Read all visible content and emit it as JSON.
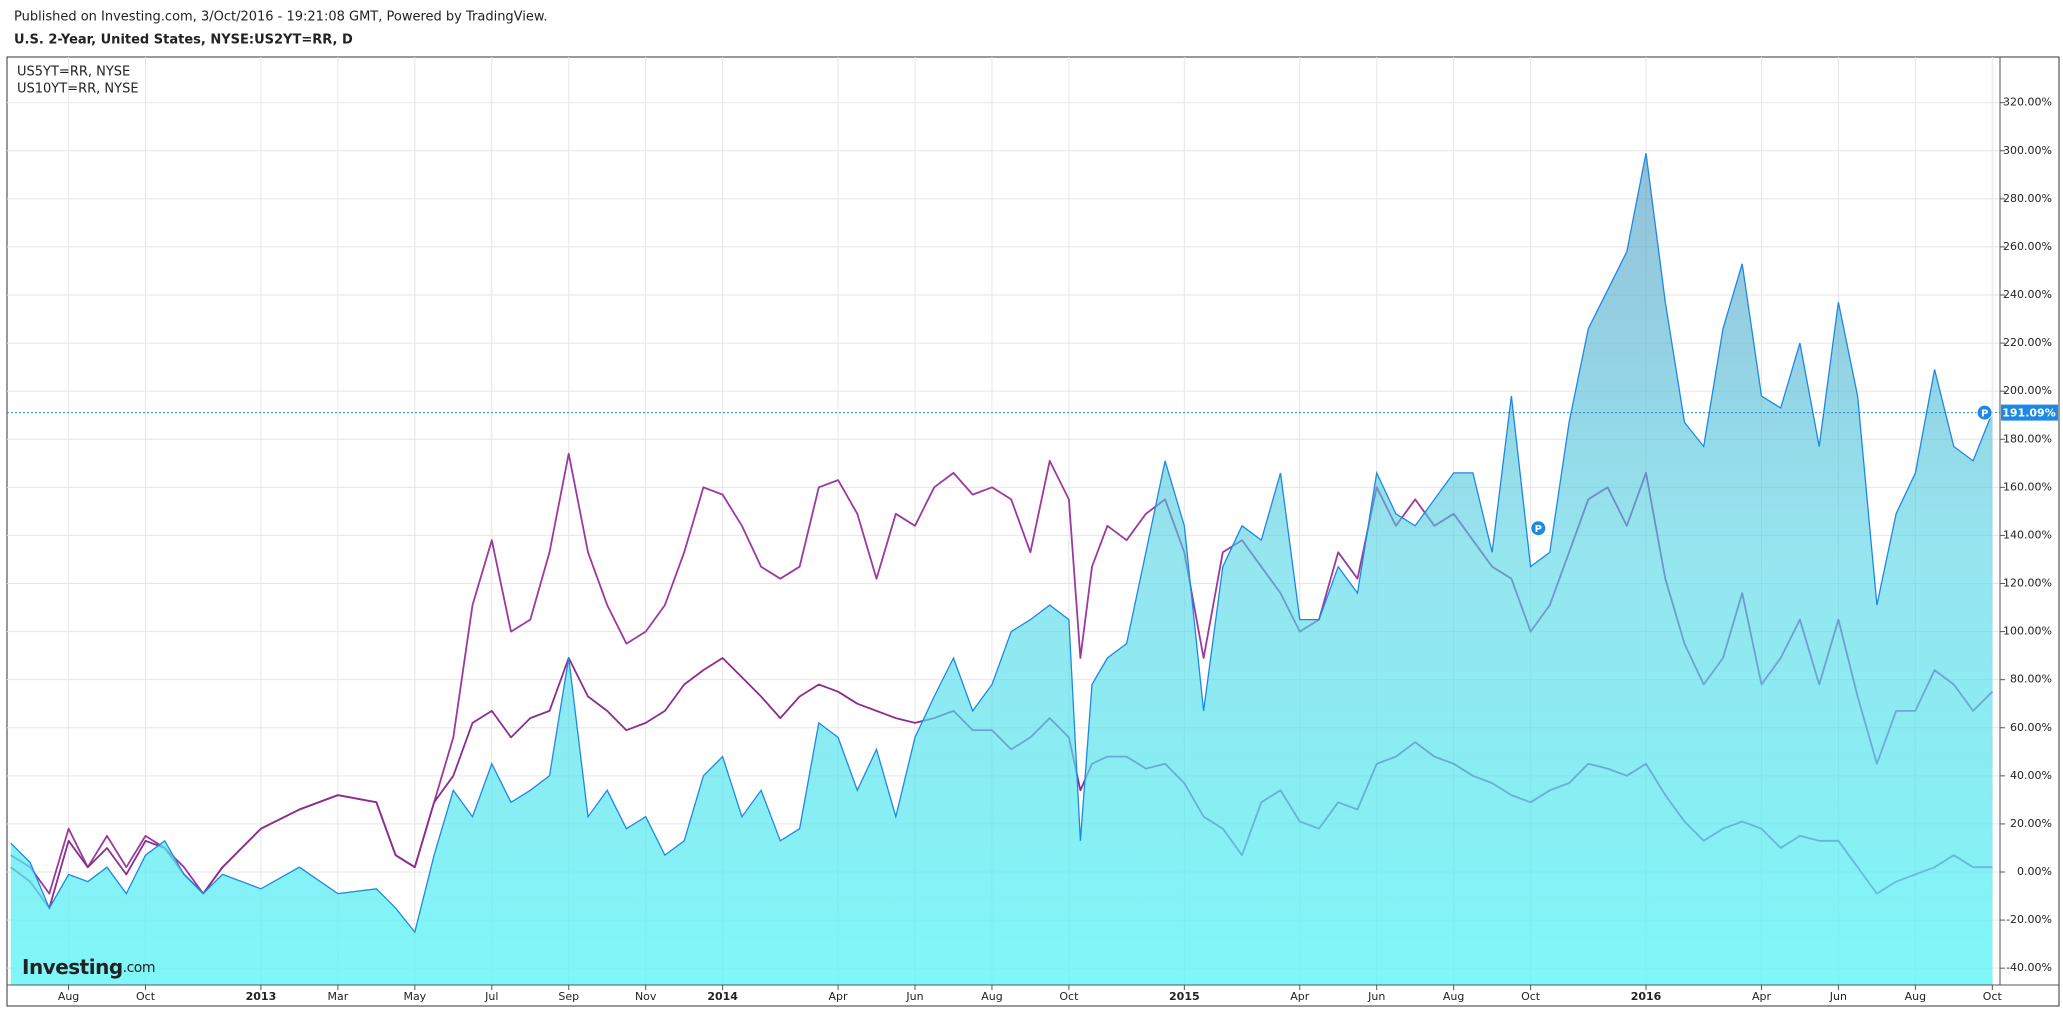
{
  "header": {
    "published": "Published on Investing.com, 3/Oct/2016 - 19:21:08 GMT, Powered by TradingView.",
    "title": "U.S. 2-Year, United States, NYSE:US2YT=RR, D"
  },
  "logo": {
    "brand": "Investing",
    "suffix": ".com"
  },
  "chart_data": {
    "type": "area",
    "x": [
      -1.5,
      -1,
      -0.5,
      0,
      0.5,
      1,
      1.5,
      2,
      2.5,
      3,
      3.5,
      4,
      5,
      6,
      7,
      8,
      8.5,
      9,
      9.5,
      10,
      10.5,
      11,
      11.5,
      12,
      12.5,
      13,
      13.5,
      14,
      14.5,
      15,
      15.5,
      16,
      16.5,
      17,
      17.5,
      18,
      18.5,
      19,
      19.5,
      20,
      20.5,
      21,
      21.5,
      22,
      22.5,
      23,
      23.5,
      24,
      24.5,
      25,
      25.5,
      26,
      26.3,
      26.6,
      27,
      27.5,
      28,
      28.5,
      29,
      29.5,
      30,
      30.5,
      31,
      31.5,
      32,
      32.5,
      33,
      33.5,
      34,
      34.5,
      35,
      35.5,
      36,
      36.5,
      37,
      37.5,
      38,
      38.5,
      39,
      39.5,
      40,
      40.5,
      41,
      41.5,
      42,
      42.5,
      43,
      43.5,
      44,
      44.5,
      45,
      45.5,
      46,
      46.5,
      47,
      47.5,
      48,
      48.5,
      49,
      49.5,
      50
    ],
    "series": [
      {
        "type": "area",
        "color": "#1e88e5",
        "values": [
          12,
          4,
          -15,
          -1,
          -4,
          2,
          -9,
          7,
          13,
          -1,
          -9,
          -1,
          -7,
          2,
          -9,
          -7,
          -15,
          -25,
          7,
          34,
          23,
          45,
          29,
          34,
          40,
          89,
          23,
          34,
          18,
          23,
          7,
          13,
          40,
          48,
          23,
          34,
          13,
          18,
          62,
          56,
          34,
          51,
          23,
          56,
          73,
          89,
          67,
          78,
          100,
          105,
          111,
          105,
          13,
          78,
          89,
          95,
          133,
          171,
          144,
          67,
          127,
          144,
          138,
          166,
          105,
          105,
          127,
          116,
          166,
          149,
          144,
          155,
          166,
          166,
          133,
          198,
          127,
          133,
          187,
          226,
          242,
          258,
          299,
          237,
          187,
          177,
          226,
          253,
          198,
          193,
          220,
          177,
          237,
          198,
          111,
          149,
          166,
          209,
          177,
          171,
          191.09
        ]
      },
      {
        "type": "line",
        "name": "US5YT=RR, NYSE",
        "color": "#9b3a9e",
        "values": [
          7,
          2,
          -9,
          18,
          2,
          15,
          2,
          15,
          10,
          2,
          -9,
          2,
          18,
          26,
          32,
          29,
          7,
          2,
          29,
          56,
          111,
          138,
          100,
          105,
          133,
          174,
          133,
          111,
          95,
          100,
          111,
          133,
          160,
          157,
          144,
          127,
          122,
          127,
          160,
          163,
          149,
          122,
          149,
          144,
          160,
          166,
          157,
          160,
          155,
          133,
          171,
          155,
          89,
          127,
          144,
          138,
          149,
          155,
          133,
          89,
          133,
          138,
          127,
          116,
          100,
          105,
          133,
          122,
          160,
          144,
          155,
          144,
          149,
          138,
          127,
          122,
          100,
          111,
          133,
          155,
          160,
          144,
          166,
          122,
          95,
          78,
          89,
          116,
          78,
          89,
          105,
          78,
          105,
          73,
          45,
          67,
          67,
          84,
          78,
          67,
          75
        ]
      },
      {
        "type": "line",
        "name": "US10YT=RR, NYSE",
        "color": "#8a2e8e",
        "values": [
          2,
          -4,
          -15,
          13,
          2,
          10,
          -1,
          13,
          10,
          -1,
          -9,
          2,
          18,
          26,
          32,
          29,
          7,
          2,
          29,
          40,
          62,
          67,
          56,
          64,
          67,
          89,
          73,
          67,
          59,
          62,
          67,
          78,
          84,
          89,
          81,
          73,
          64,
          73,
          78,
          75,
          70,
          67,
          64,
          62,
          64,
          67,
          59,
          59,
          51,
          56,
          64,
          56,
          34,
          45,
          48,
          48,
          43,
          45,
          37,
          23,
          18,
          7,
          29,
          34,
          21,
          18,
          29,
          26,
          45,
          48,
          54,
          48,
          45,
          40,
          37,
          32,
          29,
          34,
          37,
          45,
          43,
          40,
          45,
          32,
          21,
          13,
          18,
          21,
          18,
          10,
          15,
          13,
          13,
          2,
          -9,
          -4,
          -1,
          2,
          7,
          2,
          2
        ]
      }
    ],
    "xlim": [
      -1.6,
      50.2
    ],
    "xticks": [
      {
        "value": 0,
        "label": "Aug"
      },
      {
        "value": 2,
        "label": "Oct"
      },
      {
        "value": 5,
        "label": "2013"
      },
      {
        "value": 7,
        "label": "Mar"
      },
      {
        "value": 9,
        "label": "May"
      },
      {
        "value": 11,
        "label": "Jul"
      },
      {
        "value": 13,
        "label": "Sep"
      },
      {
        "value": 15,
        "label": "Nov"
      },
      {
        "value": 17,
        "label": "2014"
      },
      {
        "value": 20,
        "label": "Apr"
      },
      {
        "value": 22,
        "label": "Jun"
      },
      {
        "value": 24,
        "label": "Aug"
      },
      {
        "value": 26,
        "label": "Oct"
      },
      {
        "value": 29,
        "label": "2015"
      },
      {
        "value": 32,
        "label": "Apr"
      },
      {
        "value": 34,
        "label": "Jun"
      },
      {
        "value": 36,
        "label": "Aug"
      },
      {
        "value": 38,
        "label": "Oct"
      },
      {
        "value": 41,
        "label": "2016"
      },
      {
        "value": 44,
        "label": "Apr"
      },
      {
        "value": 46,
        "label": "Jun"
      },
      {
        "value": 48,
        "label": "Aug"
      },
      {
        "value": 50,
        "label": "Oct"
      }
    ],
    "ylim": [
      -47,
      339
    ],
    "yticks": [
      {
        "value": -40,
        "label": "-40.00%"
      },
      {
        "value": -20,
        "label": "-20.00%"
      },
      {
        "value": 0,
        "label": "0.00%"
      },
      {
        "value": 20,
        "label": "20.00%"
      },
      {
        "value": 40,
        "label": "40.00%"
      },
      {
        "value": 60,
        "label": "60.00%"
      },
      {
        "value": 80,
        "label": "80.00%"
      },
      {
        "value": 100,
        "label": "100.00%"
      },
      {
        "value": 120,
        "label": "120.00%"
      },
      {
        "value": 140,
        "label": "140.00%"
      },
      {
        "value": 160,
        "label": "160.00%"
      },
      {
        "value": 180,
        "label": "180.00%"
      },
      {
        "value": 200,
        "label": "200.00%"
      },
      {
        "value": 220,
        "label": "220.00%"
      },
      {
        "value": 240,
        "label": "240.00%"
      },
      {
        "value": 260,
        "label": "260.00%"
      },
      {
        "value": 280,
        "label": "280.00%"
      },
      {
        "value": 300,
        "label": "300.00%"
      },
      {
        "value": 320,
        "label": "320.00%"
      }
    ],
    "grid": true,
    "last_value": {
      "value": 191.09,
      "label": "191.09%"
    },
    "markers": [
      {
        "x": 38.2,
        "y": 143,
        "label": "P"
      },
      {
        "x": 49.8,
        "y": 191.09,
        "label": "P"
      }
    ]
  }
}
